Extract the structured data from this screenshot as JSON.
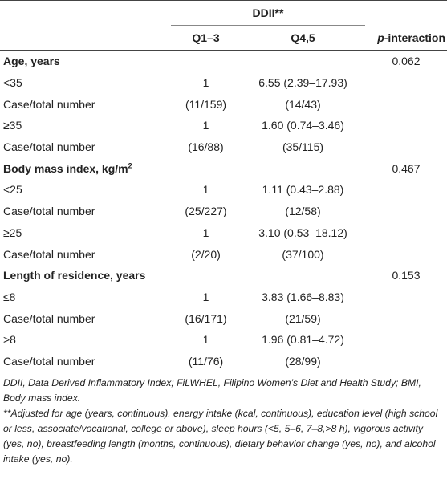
{
  "header": {
    "group_label": "DDII**",
    "columns": [
      "Q1–3",
      "Q4,5"
    ],
    "p_interaction_prefix": "p",
    "p_interaction_suffix": "-interaction"
  },
  "groups": [
    {
      "label": "Age, years",
      "p_interaction": "0.062",
      "rows": [
        {
          "label": "<35",
          "q13": "1",
          "q45": "6.55 (2.39–17.93)"
        },
        {
          "label": "Case/total number",
          "q13": "(11/159)",
          "q45": "(14/43)"
        },
        {
          "label": "≥35",
          "q13": "1",
          "q45": "1.60 (0.74–3.46)"
        },
        {
          "label": "Case/total number",
          "q13": "(16/88)",
          "q45": "(35/115)"
        }
      ]
    },
    {
      "label": "Body mass index, kg/m",
      "label_sup": "2",
      "p_interaction": "0.467",
      "rows": [
        {
          "label": "<25",
          "q13": "1",
          "q45": "1.11 (0.43–2.88)"
        },
        {
          "label": "Case/total number",
          "q13": "(25/227)",
          "q45": "(12/58)"
        },
        {
          "label": "≥25",
          "q13": "1",
          "q45": "3.10 (0.53–18.12)"
        },
        {
          "label": "Case/total number",
          "q13": "(2/20)",
          "q45": "(37/100)"
        }
      ]
    },
    {
      "label": "Length of residence, years",
      "p_interaction": "0.153",
      "rows": [
        {
          "label": "≤8",
          "q13": "1",
          "q45": "3.83 (1.66–8.83)"
        },
        {
          "label": "Case/total number",
          "q13": "(16/171)",
          "q45": "(21/59)"
        },
        {
          "label": ">8",
          "q13": "1",
          "q45": "1.96 (0.81–4.72)"
        },
        {
          "label": "Case/total number",
          "q13": "(11/76)",
          "q45": "(28/99)"
        }
      ]
    }
  ],
  "footnotes": {
    "abbreviations": "DDII, Data Derived Inflammatory Index; FiLWHEL, Filipino Women’s Diet and Health Study; BMI, Body mass index.",
    "adjustment": "**Adjusted for age (years, continuous). energy intake (kcal, continuous), education level (high school or less, associate/vocational, college or above), sleep hours (<5, 5–6, 7–8,>8 h), vigorous activity (yes, no), breastfeeding length (months, continuous), dietary behavior change (yes, no), and alcohol intake (yes, no)."
  }
}
